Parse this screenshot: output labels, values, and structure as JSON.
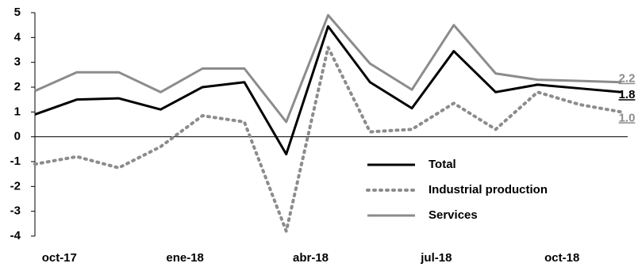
{
  "chart_data": {
    "type": "line",
    "categories": [
      null,
      "oct-17",
      null,
      null,
      "ene-18",
      null,
      null,
      "abr-18",
      null,
      null,
      "jul-18",
      null,
      null,
      "oct-18",
      null
    ],
    "series": [
      {
        "name": "Total",
        "color": "#000000",
        "dash": "solid",
        "end_label": "1.8",
        "values": [
          0.9,
          1.5,
          1.55,
          1.1,
          2.0,
          2.2,
          -0.7,
          4.45,
          2.2,
          1.15,
          3.45,
          1.8,
          2.1,
          1.95,
          1.8
        ]
      },
      {
        "name": "Industrial production",
        "color": "#8c8c8c",
        "dash": "dotted",
        "end_label": "1.0",
        "values": [
          -1.1,
          -0.8,
          -1.25,
          -0.4,
          0.85,
          0.6,
          -3.8,
          3.6,
          0.2,
          0.3,
          1.35,
          0.3,
          1.8,
          1.3,
          1.0
        ]
      },
      {
        "name": "Services",
        "color": "#8c8c8c",
        "dash": "solid",
        "end_label": "2.2",
        "values": [
          1.85,
          2.6,
          2.6,
          1.8,
          2.75,
          2.75,
          0.6,
          4.9,
          2.95,
          1.9,
          4.5,
          2.55,
          2.3,
          2.25,
          2.2
        ]
      }
    ],
    "ylim": [
      -4,
      5
    ],
    "yticks": [
      -4,
      -3,
      -2,
      -1,
      0,
      1,
      2,
      3,
      4,
      5
    ],
    "legend": "lower right"
  }
}
